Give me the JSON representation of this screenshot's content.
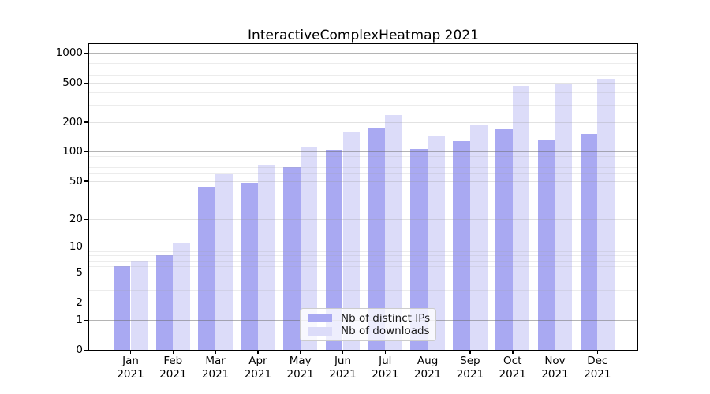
{
  "figure": {
    "title": "InteractiveComplexHeatmap 2021",
    "background": "#ffffff"
  },
  "chart_data": {
    "type": "bar",
    "title": "InteractiveComplexHeatmap 2021",
    "categories_month": [
      "Jan",
      "Feb",
      "Mar",
      "Apr",
      "May",
      "Jun",
      "Jul",
      "Aug",
      "Sep",
      "Oct",
      "Nov",
      "Dec"
    ],
    "categories_year": "2021",
    "series": [
      {
        "name": "Nb of distinct IPs",
        "color": "#a9a9f2",
        "values": [
          6,
          8,
          44,
          48,
          70,
          105,
          174,
          106,
          129,
          170,
          131,
          153
        ]
      },
      {
        "name": "Nb of downloads",
        "color": "#dcdcf9",
        "values": [
          7,
          11,
          59,
          72,
          113,
          158,
          236,
          144,
          188,
          465,
          490,
          555
        ]
      }
    ],
    "xlabel": "",
    "ylabel": "",
    "y_scale": "log1p",
    "y_tick_labels": [
      1000,
      500,
      200,
      100,
      50,
      20,
      10,
      5,
      2,
      1,
      0
    ],
    "ylim": [
      0,
      1230
    ],
    "grid": {
      "on": true,
      "decade_lines": [
        1,
        10,
        100,
        1000
      ],
      "labeled_lines": [
        2,
        5,
        20,
        50,
        200,
        500
      ],
      "minor_lines": [
        3,
        4,
        6,
        7,
        8,
        9,
        30,
        40,
        60,
        70,
        80,
        90,
        300,
        400,
        600,
        700,
        800,
        900
      ]
    },
    "legend_position": "inside lower center"
  },
  "legend": {
    "items": [
      {
        "label": "Nb of distinct IPs",
        "color": "#a9a9f2"
      },
      {
        "label": "Nb of downloads",
        "color": "#dcdcf9"
      }
    ]
  },
  "colors": {
    "spine": "#000000",
    "grid_decade": "rgba(105,105,105,0.5)",
    "grid_labeled": "rgba(150,150,150,0.28)",
    "grid_minor": "rgba(160,160,160,0.2)"
  }
}
